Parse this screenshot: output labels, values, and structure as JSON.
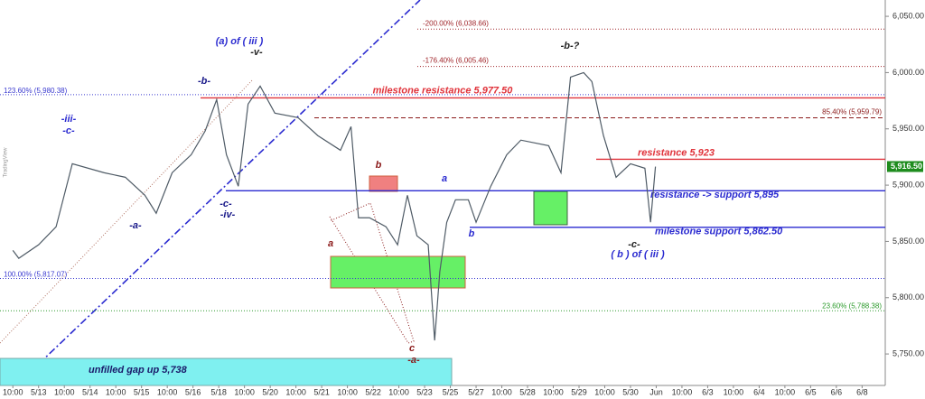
{
  "chart_data": {
    "type": "line",
    "watermark": "TradingView",
    "x": [
      0,
      0.23,
      1,
      1.68,
      2.31,
      3.55,
      4.37,
      5.13,
      5.57,
      6.19,
      6.93,
      7.47,
      7.92,
      8.3,
      8.76,
      9.14,
      9.61,
      10.18,
      11.08,
      11.85,
      12.73,
      13.14,
      13.43,
      13.86,
      14.5,
      14.95,
      15.33,
      15.7,
      16.14,
      16.39,
      16.59,
      16.86,
      17.2,
      17.7,
      18,
      18.57,
      19.19,
      19.74,
      20.82,
      21.3,
      21.67,
      22.18,
      22.5,
      22.95,
      23.44,
      24,
      24.56,
      24.78,
      24.97
    ],
    "series": [
      {
        "color": "#4f5b66",
        "values": [
          5842,
          5835,
          5847,
          5863,
          5919,
          5911,
          5907,
          5891,
          5875,
          5911,
          5927,
          5948,
          5976,
          5927,
          5899,
          5972,
          5988,
          5964,
          5960,
          5944,
          5931,
          5952,
          5871,
          5871,
          5863,
          5847,
          5891,
          5855,
          5847,
          5762,
          5823,
          5867,
          5887,
          5887,
          5867,
          5899,
          5927,
          5940,
          5935,
          5911,
          5996,
          6000,
          5992,
          5944,
          5907,
          5919,
          5915,
          5867,
          5916.5
        ]
      }
    ],
    "xlim": [
      -0.5,
      33.9
    ],
    "xticks": [
      {
        "value": 0,
        "label": "10:00"
      },
      {
        "value": 1,
        "label": "5/13"
      },
      {
        "value": 2,
        "label": "10:00"
      },
      {
        "value": 3,
        "label": "5/14"
      },
      {
        "value": 4,
        "label": "10:00"
      },
      {
        "value": 5,
        "label": "5/15"
      },
      {
        "value": 6,
        "label": "10:00"
      },
      {
        "value": 7,
        "label": "5/16"
      },
      {
        "value": 8,
        "label": "5/18"
      },
      {
        "value": 9,
        "label": "10:00"
      },
      {
        "value": 10,
        "label": "5/20"
      },
      {
        "value": 11,
        "label": "10:00"
      },
      {
        "value": 12,
        "label": "5/21"
      },
      {
        "value": 13,
        "label": "10:00"
      },
      {
        "value": 14,
        "label": "5/22"
      },
      {
        "value": 15,
        "label": "10:00"
      },
      {
        "value": 16,
        "label": "5/23"
      },
      {
        "value": 17,
        "label": "5/25"
      },
      {
        "value": 18,
        "label": "5/27"
      },
      {
        "value": 19,
        "label": "10:00"
      },
      {
        "value": 20,
        "label": "5/28"
      },
      {
        "value": 21,
        "label": "10:00"
      },
      {
        "value": 22,
        "label": "5/29"
      },
      {
        "value": 23,
        "label": "10:00"
      },
      {
        "value": 24,
        "label": "5/30"
      },
      {
        "value": 25,
        "label": "Jun"
      },
      {
        "value": 26,
        "label": "10:00"
      },
      {
        "value": 27,
        "label": "6/3"
      },
      {
        "value": 28,
        "label": "10:00"
      },
      {
        "value": 29,
        "label": "6/4"
      },
      {
        "value": 30,
        "label": "10:00"
      },
      {
        "value": 31,
        "label": "6/5"
      },
      {
        "value": 32,
        "label": "6/6"
      },
      {
        "value": 33,
        "label": "6/8"
      }
    ],
    "ylim": [
      5722,
      6064.5
    ],
    "yticks": [
      {
        "value": 5750,
        "label": "5,750.00"
      },
      {
        "value": 5800,
        "label": "5,800.00"
      },
      {
        "value": 5850,
        "label": "5,850.00"
      },
      {
        "value": 5900,
        "label": "5,900.00"
      },
      {
        "value": 5950,
        "label": "5,950.00"
      },
      {
        "value": 6000,
        "label": "6,000.00"
      },
      {
        "value": 6050,
        "label": "6,050.00"
      }
    ],
    "last_price": {
      "value": 5916.5,
      "label": "5,916.50",
      "color": "#1e8c1e"
    },
    "levels": [
      {
        "price": 6038.66,
        "label": "-200.00% (6,038.66)",
        "color": "#a0262b",
        "style": "dotted"
      },
      {
        "price": 6005.46,
        "label": "-176.40% (6,005.46)",
        "color": "#a0262b",
        "style": "dotted"
      },
      {
        "price": 5980.38,
        "label": "123.60% (5,980.38)",
        "color": "#3a3ad0",
        "style": "dotted"
      },
      {
        "price": 5977.5,
        "label": "milestone resistance 5,977.50",
        "color": "#e0323a",
        "style": "solid"
      },
      {
        "price": 5959.79,
        "label": "85.40% (5,959.79)",
        "color": "#8b1a1a",
        "style": "dashed"
      },
      {
        "price": 5923,
        "label": "resistance 5,923",
        "color": "#e0323a",
        "style": "solid"
      },
      {
        "price": 5895,
        "label": "resistance -> support 5,895",
        "color": "#2a2ad0",
        "style": "solid"
      },
      {
        "price": 5862.5,
        "label": "milestone support 5,862.50",
        "color": "#2a2ad0",
        "style": "solid"
      },
      {
        "price": 5817.07,
        "label": "100.00% (5,817.07)",
        "color": "#3a3ad0",
        "style": "dotted"
      },
      {
        "price": 5788.38,
        "label": "23.60% (5,788.38)",
        "color": "#2a9a2a",
        "style": "dotted"
      }
    ],
    "gap": {
      "price": 5738,
      "label": "unfilled gap up 5,738"
    },
    "annotations": [
      {
        "text": "(a) of ( iii )",
        "color": "#2a2ad0"
      },
      {
        "text": "-v-",
        "color": "#222"
      },
      {
        "text": "-b-",
        "color": "#1a1a8a"
      },
      {
        "text": "-iii-",
        "color": "#2a2ad0"
      },
      {
        "text": "-c-",
        "color": "#2a2ad0"
      },
      {
        "text": "-a-",
        "color": "#1a1a8a"
      },
      {
        "text": "-c-",
        "color": "#1a1a8a"
      },
      {
        "text": "-iv-",
        "color": "#1a1a8a"
      },
      {
        "text": "a",
        "color": "#8b1a1a"
      },
      {
        "text": "b",
        "color": "#8b1a1a"
      },
      {
        "text": "c",
        "color": "#8b1a1a"
      },
      {
        "text": "-a-",
        "color": "#8b1a1a"
      },
      {
        "text": "a",
        "color": "#2a2ad0"
      },
      {
        "text": "b",
        "color": "#2a2ad0"
      },
      {
        "text": "-b-?",
        "color": "#222"
      },
      {
        "text": "-c-",
        "color": "#222"
      },
      {
        "text": "( b ) of ( iii )",
        "color": "#2a2ad0"
      }
    ]
  }
}
